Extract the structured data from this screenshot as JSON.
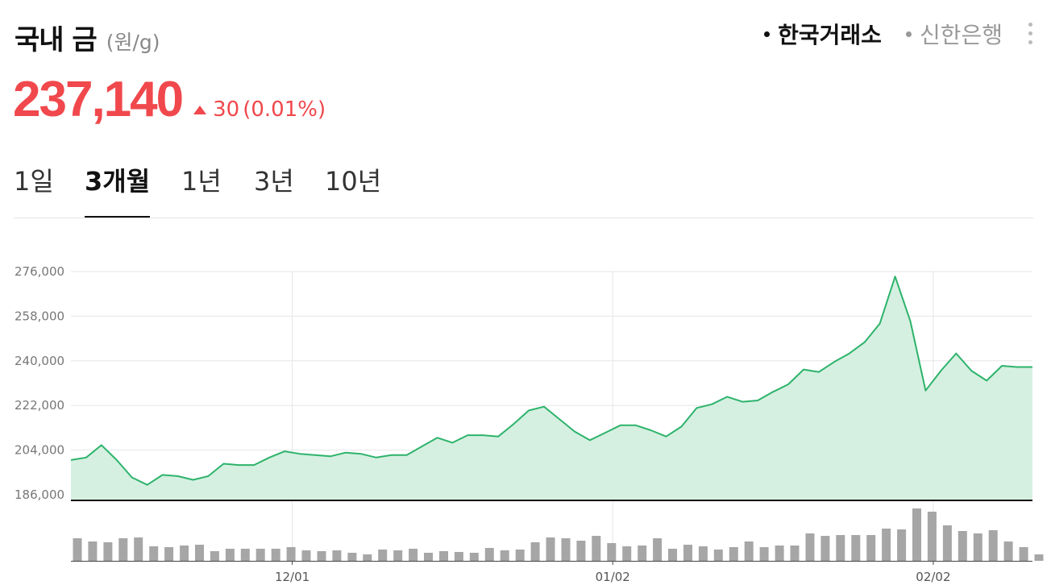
{
  "header": {
    "title": "국내 금",
    "unit": "(원/g)"
  },
  "sources": [
    {
      "label": "한국거래소",
      "active": true
    },
    {
      "label": "신한은행",
      "active": false
    }
  ],
  "price": {
    "value": "237,140",
    "change": "30",
    "change_pct": "(0.01%)",
    "direction": "up"
  },
  "tabs": [
    {
      "label": "1일",
      "active": false
    },
    {
      "label": "3개월",
      "active": true
    },
    {
      "label": "1년",
      "active": false
    },
    {
      "label": "3년",
      "active": false
    },
    {
      "label": "10년",
      "active": false
    }
  ],
  "colors": {
    "up": "#f0484c",
    "line": "#2db36b",
    "fill": "#d5f0e1",
    "volume": "#a6a6a6"
  },
  "chart_data": {
    "type": "area",
    "yticks": [
      "276,000",
      "258,000",
      "240,000",
      "222,000",
      "204,000",
      "186,000"
    ],
    "ylim": [
      186000,
      276000
    ],
    "xticks": [
      {
        "label": "12/01",
        "index": 14.5
      },
      {
        "label": "01/02",
        "index": 35.5
      },
      {
        "label": "02/02",
        "index": 56.5
      }
    ],
    "grid": true,
    "series": [
      {
        "values": [
          200000,
          201000,
          206000,
          200000,
          193000,
          190000,
          194000,
          193500,
          192000,
          193500,
          198500,
          198000,
          198000,
          201000,
          203500,
          202500,
          202000,
          201500,
          203000,
          202500,
          201000,
          202000,
          202000,
          205500,
          209000,
          207000,
          210000,
          210000,
          209500,
          214500,
          220000,
          221500,
          216500,
          211500,
          208000,
          211000,
          214000,
          214000,
          212000,
          209500,
          213500,
          221000,
          222500,
          225500,
          223500,
          224000,
          227500,
          230500,
          236500,
          235500,
          239500,
          243000,
          247500,
          255000,
          274000,
          256000,
          228000,
          236000,
          243000,
          236000,
          232000,
          238000,
          237500,
          237500
        ],
        "volume": [
          28,
          24,
          23,
          28,
          29,
          18,
          17,
          19,
          20,
          12,
          15,
          15,
          15,
          15,
          17,
          13,
          12,
          13,
          10,
          8,
          14,
          13,
          15,
          10,
          12,
          11,
          10,
          16,
          13,
          14,
          23,
          29,
          28,
          25,
          31,
          22,
          18,
          19,
          28,
          15,
          20,
          18,
          14,
          17,
          24,
          17,
          19,
          19,
          34,
          31,
          32,
          32,
          32,
          40,
          39,
          65,
          61,
          44,
          37,
          34,
          38,
          24,
          17,
          8
        ]
      }
    ]
  }
}
